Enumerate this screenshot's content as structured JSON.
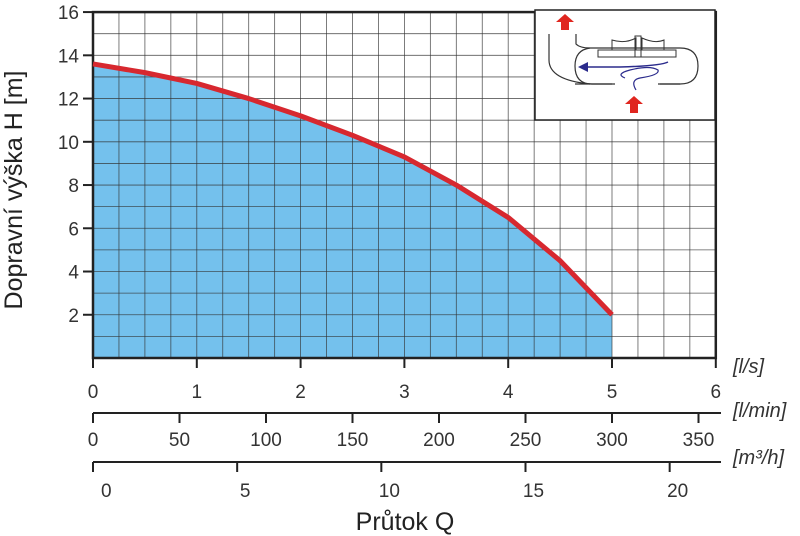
{
  "chart_data": {
    "type": "area",
    "xlabel": "Průtok Q",
    "ylabel": "Dopravní výška H [m]",
    "ylim": [
      0,
      16
    ],
    "xlim": [
      0,
      6
    ],
    "yticks": [
      2,
      4,
      6,
      8,
      10,
      12,
      14,
      16
    ],
    "grid": true,
    "x_axes": [
      {
        "unit": "[l/s]",
        "ticks": [
          0,
          1,
          2,
          3,
          4,
          5,
          6
        ],
        "per_l_s": 1
      },
      {
        "unit": "[l/min]",
        "ticks": [
          0,
          50,
          100,
          150,
          200,
          250,
          300,
          350
        ],
        "per_l_s": 60
      },
      {
        "unit": "[m³/h]",
        "ticks": [
          0,
          5,
          10,
          15,
          20
        ],
        "per_l_s": 3.6
      }
    ],
    "series": [
      {
        "x": [
          0,
          0.5,
          1,
          1.5,
          2,
          2.5,
          3,
          3.5,
          4,
          4.5,
          5
        ],
        "y": [
          13.6,
          13.2,
          12.7,
          12.0,
          11.2,
          10.3,
          9.3,
          8.0,
          6.5,
          4.5,
          2.0
        ]
      }
    ],
    "colors": {
      "curve": "#d7282f",
      "fill": "#74c1ed",
      "grid": "#333333"
    },
    "inset": "pump-impeller-diagram"
  }
}
